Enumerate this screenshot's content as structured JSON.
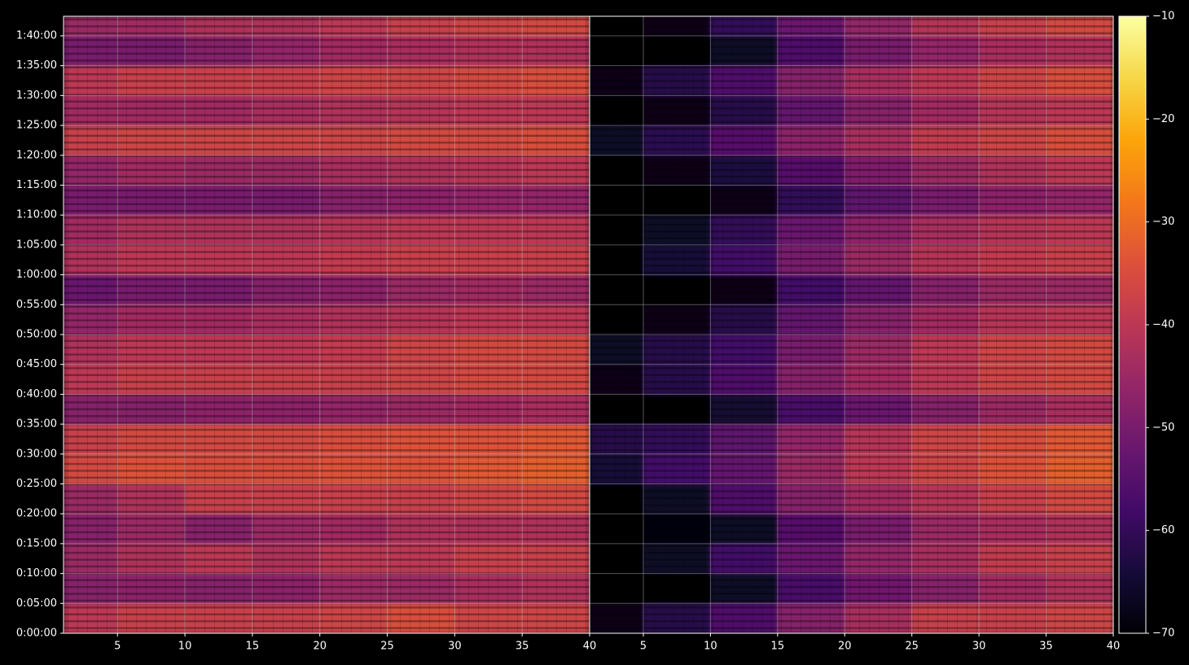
{
  "chart_data": [
    {
      "type": "heatmap",
      "x_bins": [
        1,
        5,
        10,
        15,
        20,
        25,
        30,
        35,
        40
      ],
      "y_bins": [
        0,
        300,
        600,
        900,
        1200,
        1500,
        1800,
        2100,
        2400,
        2700,
        3000,
        3300,
        3600,
        3900,
        4200,
        4500,
        4800,
        5100,
        5400,
        5700,
        6000,
        6196
      ],
      "xlim": [
        1,
        40
      ],
      "ylim": [
        0,
        6196
      ],
      "xticks": [
        5,
        10,
        15,
        20,
        25,
        30,
        35,
        40
      ],
      "yticks": [
        {
          "value": 0,
          "label": "0:00:00"
        },
        {
          "value": 300,
          "label": "0:05:00"
        },
        {
          "value": 600,
          "label": "0:10:00"
        },
        {
          "value": 900,
          "label": "0:15:00"
        },
        {
          "value": 1200,
          "label": "0:20:00"
        },
        {
          "value": 1500,
          "label": "0:25:00"
        },
        {
          "value": 1800,
          "label": "0:30:00"
        },
        {
          "value": 2100,
          "label": "0:35:00"
        },
        {
          "value": 2400,
          "label": "0:40:00"
        },
        {
          "value": 2700,
          "label": "0:45:00"
        },
        {
          "value": 3000,
          "label": "0:50:00"
        },
        {
          "value": 3300,
          "label": "0:55:00"
        },
        {
          "value": 3600,
          "label": "1:00:00"
        },
        {
          "value": 3900,
          "label": "1:05:00"
        },
        {
          "value": 4200,
          "label": "1:10:00"
        },
        {
          "value": 4500,
          "label": "1:15:00"
        },
        {
          "value": 4800,
          "label": "1:20:00"
        },
        {
          "value": 5100,
          "label": "1:25:00"
        },
        {
          "value": 5400,
          "label": "1:30:00"
        },
        {
          "value": 5700,
          "label": "1:35:00"
        },
        {
          "value": 6000,
          "label": "1:40:00"
        }
      ],
      "grid": true,
      "values": [
        [
          -40,
          -38,
          -38,
          -38,
          -37,
          -35,
          -37,
          -37
        ],
        [
          -48,
          -47,
          -48,
          -47,
          -45,
          -45,
          -43,
          -42
        ],
        [
          -45,
          -42,
          -40,
          -42,
          -40,
          -40,
          -38,
          -38
        ],
        [
          -48,
          -45,
          -48,
          -45,
          -44,
          -42,
          -42,
          -42
        ],
        [
          -45,
          -42,
          -38,
          -38,
          -38,
          -38,
          -37,
          -36
        ],
        [
          -36,
          -34,
          -35,
          -35,
          -34,
          -34,
          -33,
          -32
        ],
        [
          -38,
          -36,
          -36,
          -36,
          -35,
          -34,
          -34,
          -33
        ],
        [
          -48,
          -48,
          -47,
          -47,
          -46,
          -45,
          -44,
          -43
        ],
        [
          -40,
          -38,
          -38,
          -38,
          -38,
          -37,
          -36,
          -36
        ],
        [
          -42,
          -40,
          -40,
          -40,
          -39,
          -37,
          -36,
          -36
        ],
        [
          -46,
          -44,
          -44,
          -43,
          -42,
          -41,
          -40,
          -40
        ],
        [
          -52,
          -50,
          -50,
          -48,
          -47,
          -45,
          -44,
          -45
        ],
        [
          -42,
          -40,
          -40,
          -40,
          -39,
          -38,
          -38,
          -38
        ],
        [
          -44,
          -42,
          -42,
          -42,
          -41,
          -40,
          -40,
          -40
        ],
        [
          -50,
          -50,
          -50,
          -50,
          -48,
          -47,
          -46,
          -46
        ],
        [
          -46,
          -44,
          -45,
          -45,
          -43,
          -42,
          -41,
          -40
        ],
        [
          -38,
          -37,
          -37,
          -37,
          -37,
          -36,
          -36,
          -35
        ],
        [
          -44,
          -44,
          -44,
          -43,
          -42,
          -41,
          -40,
          -40
        ],
        [
          -40,
          -38,
          -38,
          -38,
          -37,
          -37,
          -36,
          -35
        ],
        [
          -50,
          -50,
          -48,
          -46,
          -44,
          -43,
          -42,
          -42
        ],
        [
          -45,
          -44,
          -42,
          -42,
          -40,
          -38,
          -37,
          -36
        ]
      ]
    },
    {
      "type": "heatmap",
      "x_bins": [
        1,
        5,
        10,
        15,
        20,
        25,
        30,
        35,
        40
      ],
      "y_bins": [
        0,
        300,
        600,
        900,
        1200,
        1500,
        1800,
        2100,
        2400,
        2700,
        3000,
        3300,
        3600,
        3900,
        4200,
        4500,
        4800,
        5100,
        5400,
        5700,
        6000,
        6196
      ],
      "xlim": [
        1,
        40
      ],
      "ylim": [
        0,
        6196
      ],
      "xticks": [
        5,
        10,
        15,
        20,
        25,
        30,
        35,
        40
      ],
      "yticks": [
        0,
        300,
        600,
        900,
        1200,
        1500,
        1800,
        2100,
        2400,
        2700,
        3000,
        3300,
        3600,
        3900,
        4200,
        4500,
        4800,
        5100,
        5400,
        5700,
        6000
      ],
      "grid": true,
      "values": [
        [
          -68,
          -62,
          -56,
          -48,
          -43,
          -38,
          -38,
          -37
        ],
        [
          -70,
          -70,
          -66,
          -57,
          -51,
          -48,
          -44,
          -42
        ],
        [
          -70,
          -66,
          -58,
          -52,
          -46,
          -43,
          -39,
          -38
        ],
        [
          -70,
          -69,
          -66,
          -55,
          -50,
          -45,
          -43,
          -42
        ],
        [
          -70,
          -66,
          -56,
          -48,
          -44,
          -41,
          -38,
          -36
        ],
        [
          -64,
          -58,
          -53,
          -45,
          -40,
          -37,
          -34,
          -32
        ],
        [
          -62,
          -60,
          -54,
          -46,
          -41,
          -37,
          -35,
          -33
        ],
        [
          -70,
          -70,
          -65,
          -57,
          -52,
          -48,
          -45,
          -43
        ],
        [
          -68,
          -62,
          -56,
          -48,
          -44,
          -40,
          -37,
          -36
        ],
        [
          -66,
          -62,
          -58,
          -50,
          -45,
          -40,
          -37,
          -36
        ],
        [
          -70,
          -68,
          -62,
          -53,
          -48,
          -44,
          -41,
          -40
        ],
        [
          -70,
          -70,
          -68,
          -58,
          -53,
          -48,
          -45,
          -45
        ],
        [
          -70,
          -64,
          -58,
          -50,
          -45,
          -41,
          -39,
          -38
        ],
        [
          -70,
          -66,
          -60,
          -52,
          -47,
          -43,
          -41,
          -40
        ],
        [
          -70,
          -70,
          -68,
          -60,
          -54,
          -50,
          -47,
          -46
        ],
        [
          -70,
          -68,
          -63,
          -55,
          -49,
          -45,
          -42,
          -40
        ],
        [
          -66,
          -61,
          -55,
          -47,
          -43,
          -39,
          -37,
          -35
        ],
        [
          -70,
          -68,
          -62,
          -53,
          -48,
          -44,
          -41,
          -40
        ],
        [
          -68,
          -62,
          -56,
          -48,
          -43,
          -40,
          -37,
          -35
        ],
        [
          -70,
          -70,
          -66,
          -56,
          -50,
          -46,
          -43,
          -42
        ],
        [
          -70,
          -68,
          -60,
          -52,
          -46,
          -41,
          -38,
          -36
        ]
      ]
    }
  ],
  "colorbar": {
    "colormap": "inferno",
    "clim": [
      -70,
      -10
    ],
    "ticks": [
      {
        "value": -70,
        "label": "−70"
      },
      {
        "value": -60,
        "label": "−60"
      },
      {
        "value": -50,
        "label": "−50"
      },
      {
        "value": -40,
        "label": "−40"
      },
      {
        "value": -30,
        "label": "−30"
      },
      {
        "value": -20,
        "label": "−20"
      },
      {
        "value": -10,
        "label": "−10"
      }
    ]
  }
}
